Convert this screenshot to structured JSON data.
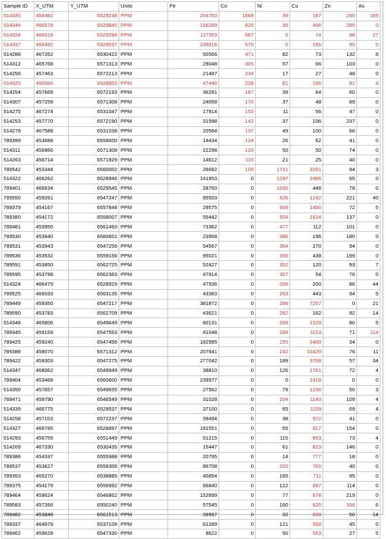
{
  "columns": [
    "Sample ID",
    "X_UTM",
    "Y_UTM",
    "Units",
    "Fe",
    "Co",
    "Ni",
    "Cu",
    "Zn",
    "As"
  ],
  "colors": {
    "highlight": "#d6332b",
    "grid": "#c9c9c9",
    "frame": "#9cb8d6"
  },
  "rows": [
    {
      "v": [
        "514335",
        "466482",
        "6529238",
        "PPM",
        "204763",
        "1669",
        "39",
        "187",
        "290",
        "169"
      ],
      "red": "all"
    },
    {
      "v": [
        "514344",
        "466578",
        "6529845",
        "PPM",
        "156299",
        "825",
        "30",
        "406",
        "295",
        "0"
      ],
      "red": "all"
    },
    {
      "v": [
        "514334",
        "466518",
        "6529294",
        "PPM",
        "117353",
        "667",
        "0",
        "74",
        "88",
        "27"
      ],
      "red": "all"
    },
    {
      "v": [
        "514337",
        "466492",
        "6529537",
        "PPM",
        "239918",
        "570",
        "0",
        "166",
        "95",
        "0"
      ],
      "red": "all"
    },
    {
      "v": [
        "514288",
        "467262",
        "6530422",
        "PPM",
        "50566",
        "471",
        "82",
        "73",
        "132",
        "8"
      ],
      "red": [
        5
      ]
    },
    {
      "v": [
        "514312",
        "465768",
        "6571313",
        "PPM",
        "29048",
        "305",
        "57",
        "66",
        "103",
        "0"
      ],
      "red": [
        5
      ]
    },
    {
      "v": [
        "514256",
        "457463",
        "6572213",
        "PPM",
        "21487",
        "234",
        "17",
        "27",
        "48",
        "0"
      ],
      "red": [
        5
      ]
    },
    {
      "v": [
        "514325",
        "466566",
        "6528953",
        "PPM",
        "47446",
        "228",
        "81",
        "166",
        "81",
        "8"
      ],
      "red": "all"
    },
    {
      "v": [
        "514254",
        "457669",
        "6572193",
        "PPM",
        "36291",
        "187",
        "39",
        "64",
        "60",
        "0"
      ],
      "red": [
        5
      ]
    },
    {
      "v": [
        "514307",
        "457258",
        "6571308",
        "PPM",
        "24058",
        "176",
        "37",
        "48",
        "89",
        "0"
      ],
      "red": [
        5
      ]
    },
    {
      "v": [
        "514275",
        "467274",
        "6531047",
        "PPM",
        "17914",
        "153",
        "11",
        "56",
        "47",
        "0"
      ],
      "red": [
        5
      ]
    },
    {
      "v": [
        "514253",
        "457770",
        "6572190",
        "PPM",
        "31598",
        "142",
        "37",
        "106",
        "237",
        "0"
      ],
      "red": [
        5
      ]
    },
    {
      "v": [
        "514278",
        "467588",
        "6531038",
        "PPM",
        "20584",
        "137",
        "49",
        "100",
        "66",
        "0"
      ],
      "red": [
        5
      ]
    },
    {
      "v": [
        "789399",
        "453688",
        "6558600",
        "PPM",
        "14434",
        "124",
        "26",
        "62",
        "41",
        "0"
      ],
      "red": [
        5
      ]
    },
    {
      "v": [
        "514311",
        "456866",
        "6571308",
        "PPM",
        "22298",
        "120",
        "50",
        "50",
        "74",
        "0"
      ],
      "red": [
        5
      ]
    },
    {
      "v": [
        "514263",
        "456714",
        "6571929",
        "PPM",
        "14612",
        "110",
        "21",
        "25",
        "40",
        "0"
      ],
      "red": [
        5
      ]
    },
    {
      "v": [
        "789542",
        "453344",
        "6560002",
        "PPM",
        "26682",
        "100",
        "1731",
        "3291",
        "94",
        "3"
      ],
      "red": [
        5,
        6,
        7
      ]
    },
    {
      "v": [
        "514322",
        "466262",
        "6528946",
        "PPM",
        "141953",
        "0",
        "1297",
        "2486",
        "65",
        "0"
      ],
      "red": [
        6,
        7
      ]
    },
    {
      "v": [
        "789401",
        "466634",
        "6529545",
        "PPM",
        "28760",
        "0",
        "1030",
        "446",
        "78",
        "0"
      ],
      "red": [
        6
      ]
    },
    {
      "v": [
        "789550",
        "459261",
        "6547247",
        "PPM",
        "85503",
        "0",
        "626",
        "1242",
        "221",
        "40"
      ],
      "red": [
        6,
        7
      ]
    },
    {
      "v": [
        "789379",
        "454167",
        "6557848",
        "PPM",
        "29575",
        "0",
        "569",
        "1456",
        "72",
        "5"
      ],
      "red": [
        6,
        7
      ]
    },
    {
      "v": [
        "789380",
        "454172",
        "6558007",
        "PPM",
        "55442",
        "0",
        "554",
        "1624",
        "137",
        "0"
      ],
      "red": [
        6,
        7
      ]
    },
    {
      "v": [
        "789481",
        "453950",
        "6561493",
        "PPM",
        "73362",
        "0",
        "477",
        "112",
        "101",
        "0"
      ],
      "red": [
        6
      ]
    },
    {
      "v": [
        "789530",
        "453940",
        "6560601",
        "PPM",
        "23968",
        "0",
        "386",
        "196",
        "180",
        "0"
      ],
      "red": [
        6
      ]
    },
    {
      "v": [
        "789531",
        "453943",
        "6547256",
        "PPM",
        "54567",
        "0",
        "364",
        "270",
        "94",
        "0"
      ],
      "red": [
        6
      ]
    },
    {
      "v": [
        "789536",
        "453532",
        "6559156",
        "PPM",
        "95021",
        "0",
        "356",
        "438",
        "199",
        "0"
      ],
      "red": [
        6
      ]
    },
    {
      "v": [
        "789591",
        "453850",
        "6562725",
        "PPM",
        "52427",
        "0",
        "352",
        "120",
        "93",
        "7"
      ],
      "red": [
        6
      ]
    },
    {
      "v": [
        "789595",
        "453798",
        "6562383",
        "PPM",
        "47914",
        "0",
        "307",
        "54",
        "76",
        "0"
      ],
      "red": [
        6
      ]
    },
    {
      "v": [
        "514324",
        "466479",
        "6528929",
        "PPM",
        "47936",
        "0",
        "296",
        "200",
        "86",
        "44"
      ],
      "red": [
        6
      ]
    },
    {
      "v": [
        "789525",
        "466033",
        "6563135",
        "PPM",
        "43383",
        "0",
        "293",
        "443",
        "94",
        "5"
      ],
      "red": [
        6
      ]
    },
    {
      "v": [
        "789449",
        "459350",
        "6547217",
        "PPM",
        "381872",
        "0",
        "289",
        "7257",
        "0",
        "21"
      ],
      "red": [
        6,
        7
      ]
    },
    {
      "v": [
        "789590",
        "453783",
        "6562709",
        "PPM",
        "43621",
        "0",
        "282",
        "162",
        "92",
        "14"
      ],
      "red": [
        6
      ]
    },
    {
      "v": [
        "514348",
        "465806",
        "6549649",
        "PPM",
        "60131",
        "0",
        "269",
        "1529",
        "80",
        "5"
      ],
      "red": [
        6,
        7
      ]
    },
    {
      "v": [
        "789345",
        "459159",
        "6547553",
        "PPM",
        "41048",
        "0",
        "269",
        "1153",
        "71",
        "114"
      ],
      "red": [
        6,
        7,
        9
      ]
    },
    {
      "v": [
        "789425",
        "459240",
        "6547458",
        "PPM",
        "182995",
        "0",
        "255",
        "2400",
        "34",
        "0"
      ],
      "red": [
        6,
        7
      ]
    },
    {
      "v": [
        "789388",
        "458070",
        "6571312",
        "PPM",
        "207641",
        "0",
        "242",
        "10429",
        "76",
        "11"
      ],
      "red": [
        6,
        7
      ]
    },
    {
      "v": [
        "789422",
        "459303",
        "6547275",
        "PPM",
        "277042",
        "0",
        "189",
        "3768",
        "57",
        "34"
      ],
      "red": [
        7
      ]
    },
    {
      "v": [
        "514347",
        "468062",
        "6549949",
        "PPM",
        "38810",
        "0",
        "126",
        "1761",
        "72",
        "4"
      ],
      "red": [
        7
      ]
    },
    {
      "v": [
        "789404",
        "453468",
        "6560600",
        "PPM",
        "239977",
        "0",
        "0",
        "1418",
        "0",
        "0"
      ],
      "red": [
        7
      ]
    },
    {
      "v": [
        "514350",
        "457657",
        "6549655",
        "PPM",
        "27562",
        "0",
        "79",
        "1236",
        "50",
        "3"
      ],
      "red": [
        7
      ]
    },
    {
      "v": [
        "789471",
        "459790",
        "6546549",
        "PPM",
        "31028",
        "0",
        "204",
        "1143",
        "109",
        "4"
      ],
      "red": [
        6,
        7
      ]
    },
    {
      "v": [
        "514339",
        "466775",
        "6529537",
        "PPM",
        "37100",
        "0",
        "65",
        "1109",
        "69",
        "4"
      ],
      "red": [
        7
      ]
    },
    {
      "v": [
        "514258",
        "457103",
        "6572237",
        "PPM",
        "39494",
        "0",
        "38",
        "972",
        "41",
        "0"
      ],
      "red": [
        7
      ]
    },
    {
      "v": [
        "514327",
        "466785",
        "6528897",
        "PPM",
        "191551",
        "0",
        "55",
        "917",
        "154",
        "0"
      ],
      "red": [
        7
      ]
    },
    {
      "v": [
        "514293",
        "456755",
        "6551449",
        "PPM",
        "51215",
        "0",
        "115",
        "853",
        "73",
        "4"
      ],
      "red": [
        7
      ]
    },
    {
      "v": [
        "514269",
        "467330",
        "6530435",
        "PPM",
        "15447",
        "0",
        "61",
        "823",
        "146",
        "0"
      ],
      "red": [
        7
      ]
    },
    {
      "v": [
        "789386",
        "454337",
        "6555988",
        "PPM",
        "20795",
        "0",
        "14",
        "777",
        "18",
        "0"
      ],
      "red": [
        7
      ]
    },
    {
      "v": [
        "789537",
        "453627",
        "6559306",
        "PPM",
        "86708",
        "0",
        "203",
        "765",
        "40",
        "0"
      ],
      "red": [
        6,
        7
      ]
    },
    {
      "v": [
        "789353",
        "465270",
        "6538885",
        "PPM",
        "40854",
        "0",
        "165",
        "711",
        "95",
        "0"
      ],
      "red": [
        7
      ]
    },
    {
      "v": [
        "789375",
        "454179",
        "6556992",
        "PPM",
        "66840",
        "0",
        "122",
        "697",
        "114",
        "0"
      ],
      "red": [
        7
      ]
    },
    {
      "v": [
        "789464",
        "459624",
        "6546862",
        "PPM",
        "152899",
        "0",
        "77",
        "678",
        "219",
        "0"
      ],
      "red": [
        7
      ]
    },
    {
      "v": [
        "789583",
        "457266",
        "6550240",
        "PPM",
        "57545",
        "0",
        "160",
        "625",
        "338",
        "6"
      ],
      "red": [
        7,
        8
      ]
    },
    {
      "v": [
        "789482",
        "453848",
        "6561513",
        "PPM",
        "39997",
        "0",
        "32",
        "608",
        "50",
        "14"
      ],
      "red": [
        7
      ]
    },
    {
      "v": [
        "789337",
        "464979",
        "6537109",
        "PPM",
        "61289",
        "0",
        "121",
        "558",
        "45",
        "0"
      ],
      "red": [
        7
      ]
    },
    {
      "v": [
        "789462",
        "459628",
        "6547330",
        "PPM",
        "8622",
        "0",
        "50",
        "553",
        "27",
        "5"
      ],
      "red": [
        7
      ]
    }
  ]
}
